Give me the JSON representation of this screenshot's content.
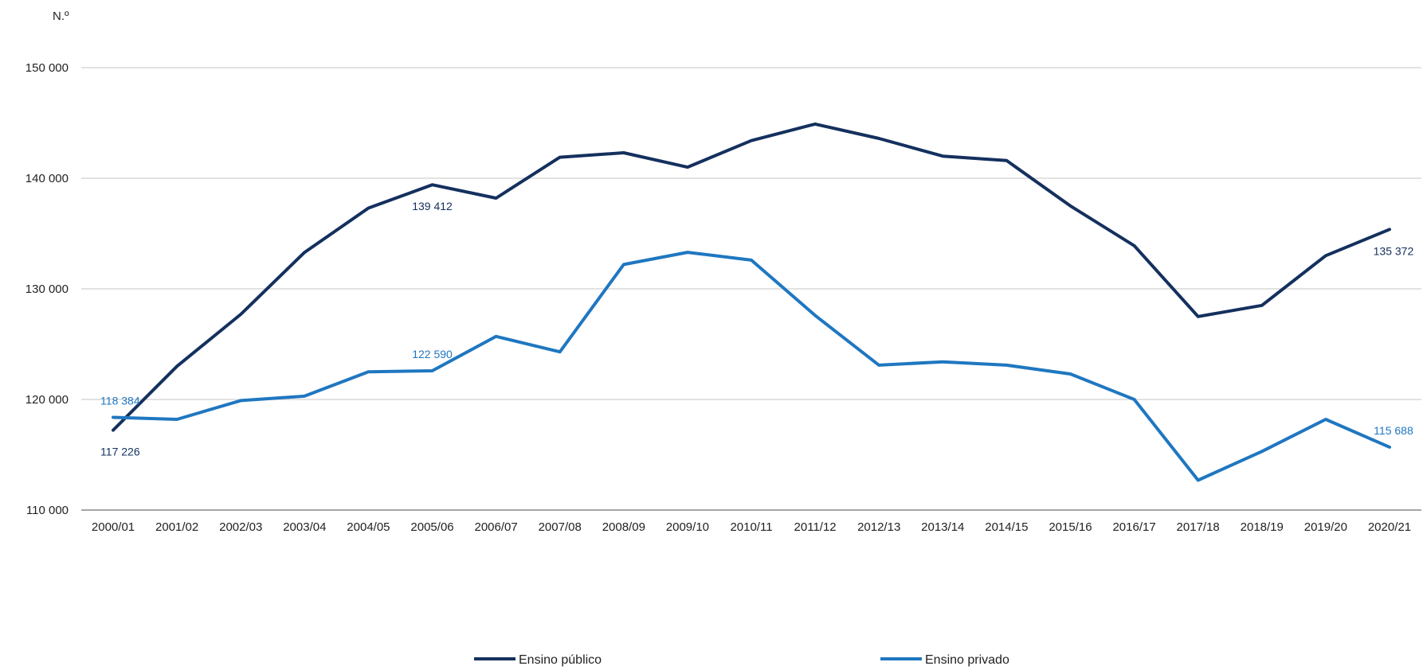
{
  "chart_data": {
    "type": "line",
    "title": "",
    "ylabel": "N.º",
    "xlabel": "",
    "categories": [
      "2000/01",
      "2001/02",
      "2002/03",
      "2003/04",
      "2004/05",
      "2005/06",
      "2006/07",
      "2007/08",
      "2008/09",
      "2009/10",
      "2010/11",
      "2011/12",
      "2012/13",
      "2013/14",
      "2014/15",
      "2015/16",
      "2016/17",
      "2017/18",
      "2018/19",
      "2019/20",
      "2020/21"
    ],
    "ylim": [
      110000,
      150000
    ],
    "yticks": [
      110000,
      120000,
      130000,
      140000,
      150000
    ],
    "ytick_labels": [
      "110 000",
      "120 000",
      "130 000",
      "140 000",
      "150 000"
    ],
    "grid": "horizontal",
    "legend_position": "bottom",
    "series": [
      {
        "name": "Ensino público",
        "color": "#14305e",
        "values": [
          117226,
          123000,
          127700,
          133300,
          137300,
          139412,
          138200,
          141900,
          142300,
          141000,
          143400,
          144900,
          143600,
          142000,
          141600,
          137500,
          133900,
          127500,
          128500,
          133000,
          135372
        ],
        "labels": [
          {
            "index": 0,
            "text": "117 226",
            "pos": "below"
          },
          {
            "index": 5,
            "text": "139 412",
            "pos": "below"
          },
          {
            "index": 20,
            "text": "135 372",
            "pos": "below"
          }
        ]
      },
      {
        "name": "Ensino privado",
        "color": "#1f77c0",
        "values": [
          118384,
          118200,
          119900,
          120300,
          122500,
          122590,
          125700,
          124300,
          132200,
          133300,
          132600,
          127600,
          123100,
          123400,
          123100,
          122300,
          120000,
          112700,
          115300,
          118200,
          115688
        ],
        "labels": [
          {
            "index": 0,
            "text": "118 384",
            "pos": "above"
          },
          {
            "index": 5,
            "text": "122 590",
            "pos": "above"
          },
          {
            "index": 20,
            "text": "115 688",
            "pos": "above"
          }
        ]
      }
    ]
  }
}
